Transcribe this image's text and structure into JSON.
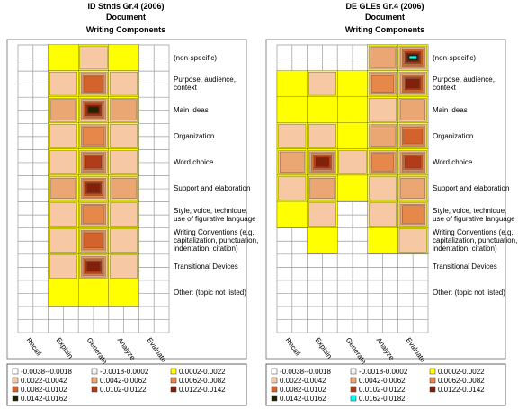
{
  "chart_data": [
    {
      "type": "contour",
      "title": "ID Stnds Gr.4 (2006)",
      "subtitle": "Document",
      "y_label": "Writing Components",
      "x": [
        "Recall",
        "Explain",
        "Generate",
        "Analyze",
        "Evaluate"
      ],
      "y": [
        "(non-specific)",
        "Purpose, audience,\ncontext",
        "Main ideas",
        "Organization",
        "Word choice",
        "Support and elaboration",
        "Style, voice, technique,\nuse of figurative language",
        "Writing Conventions (e.g.\ncapitalization, punctuation,\nindentation, citation)",
        "Transitional Devices",
        "Other: (topic not listed)"
      ],
      "z": [
        [
          0,
          0.001,
          0.003,
          0.001,
          0
        ],
        [
          0,
          0.003,
          0.009,
          0.003,
          0
        ],
        [
          0,
          0.005,
          0.016,
          0.005,
          0
        ],
        [
          0,
          0.003,
          0.008,
          0.003,
          0
        ],
        [
          0,
          0.004,
          0.011,
          0.004,
          0
        ],
        [
          0,
          0.005,
          0.014,
          0.005,
          0
        ],
        [
          0,
          0.003,
          0.008,
          0.003,
          0
        ],
        [
          0,
          0.004,
          0.01,
          0.004,
          0
        ],
        [
          0,
          0.004,
          0.013,
          0.004,
          0
        ],
        [
          0,
          0.001,
          0.002,
          0.001,
          0
        ]
      ],
      "legend": [
        {
          "label": "-0.0038--0.0018",
          "min": -0.0038,
          "max": -0.0018,
          "color": "#ffffff"
        },
        {
          "label": "-0.0018-0.0002",
          "min": -0.0018,
          "max": 0.0002,
          "color": "#f2f2f2"
        },
        {
          "label": "0.0002-0.0022",
          "min": 0.0002,
          "max": 0.0022,
          "color": "#ffff00"
        },
        {
          "label": "0.0022-0.0042",
          "min": 0.0022,
          "max": 0.0042,
          "color": "#f6c9a4"
        },
        {
          "label": "0.0042-0.0062",
          "min": 0.0042,
          "max": 0.0062,
          "color": "#eaa774"
        },
        {
          "label": "0.0062-0.0082",
          "min": 0.0062,
          "max": 0.0082,
          "color": "#e5884a"
        },
        {
          "label": "0.0082-0.0102",
          "min": 0.0082,
          "max": 0.0102,
          "color": "#d4622c"
        },
        {
          "label": "0.0102-0.0122",
          "min": 0.0102,
          "max": 0.0122,
          "color": "#b23c1a"
        },
        {
          "label": "0.0122-0.0142",
          "min": 0.0122,
          "max": 0.0142,
          "color": "#82200a"
        },
        {
          "label": "0.0142-0.0162",
          "min": 0.0142,
          "max": 0.0162,
          "color": "#222200"
        }
      ]
    },
    {
      "type": "contour",
      "title": "DE GLEs Gr.4 (2006)",
      "subtitle": "Document",
      "y_label": "Writing Components",
      "x": [
        "Recall",
        "Explain",
        "Generate",
        "Analyze",
        "Evaluate"
      ],
      "y": [
        "(non-specific)",
        "Purpose, audience,\ncontext",
        "Main ideas",
        "Organization",
        "Word choice",
        "Support and elaboration",
        "Style, voice, technique,\nuse of figurative language",
        "Writing Conventions (e.g.\ncapitalization, punctuation,\nindentation, citation)",
        "Transitional Devices",
        "Other: (topic not listed)"
      ],
      "z": [
        [
          0,
          0,
          0,
          0.006,
          0.017
        ],
        [
          0.002,
          0.004,
          0.002,
          0.007,
          0.014
        ],
        [
          0.001,
          0.002,
          0.001,
          0.003,
          0.005
        ],
        [
          0.003,
          0.004,
          0.002,
          0.006,
          0.009
        ],
        [
          0.006,
          0.014,
          0.004,
          0.008,
          0.012
        ],
        [
          0.003,
          0.005,
          0.002,
          0.003,
          0.005
        ],
        [
          0.002,
          0.003,
          0,
          0.004,
          0.007
        ],
        [
          0,
          0.001,
          0,
          0.002,
          0.003
        ],
        [
          0,
          0,
          0,
          0,
          0
        ],
        [
          0,
          0,
          0,
          0,
          0
        ]
      ],
      "legend": [
        {
          "label": "-0.0038--0.0018",
          "min": -0.0038,
          "max": -0.0018,
          "color": "#ffffff"
        },
        {
          "label": "-0.0018-0.0002",
          "min": -0.0018,
          "max": 0.0002,
          "color": "#f2f2f2"
        },
        {
          "label": "0.0002-0.0022",
          "min": 0.0002,
          "max": 0.0022,
          "color": "#ffff00"
        },
        {
          "label": "0.0022-0.0042",
          "min": 0.0022,
          "max": 0.0042,
          "color": "#f6c9a4"
        },
        {
          "label": "0.0042-0.0062",
          "min": 0.0042,
          "max": 0.0062,
          "color": "#eaa774"
        },
        {
          "label": "0.0062-0.0082",
          "min": 0.0062,
          "max": 0.0082,
          "color": "#e5884a"
        },
        {
          "label": "0.0082-0.0102",
          "min": 0.0082,
          "max": 0.0102,
          "color": "#d4622c"
        },
        {
          "label": "0.0102-0.0122",
          "min": 0.0102,
          "max": 0.0122,
          "color": "#b23c1a"
        },
        {
          "label": "0.0122-0.0142",
          "min": 0.0122,
          "max": 0.0142,
          "color": "#82200a"
        },
        {
          "label": "0.0142-0.0162",
          "min": 0.0142,
          "max": 0.0162,
          "color": "#222200"
        },
        {
          "label": "0.0162-0.0182",
          "min": 0.0162,
          "max": 0.0182,
          "color": "#00ffff"
        }
      ]
    }
  ]
}
